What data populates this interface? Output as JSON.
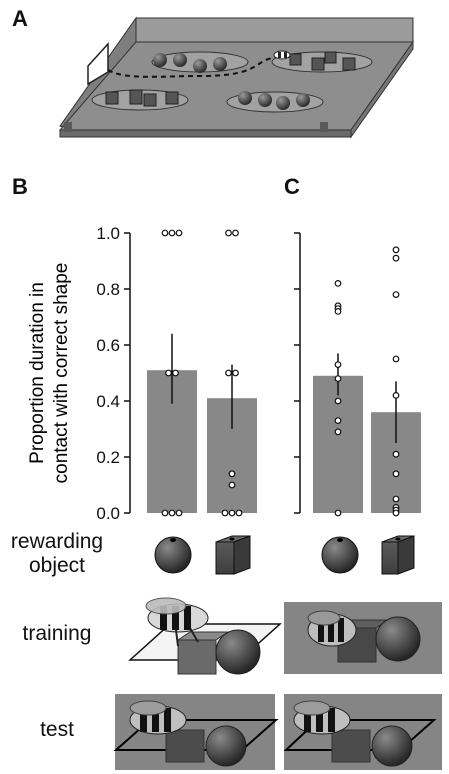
{
  "figure": {
    "panels": {
      "a": "A",
      "b": "B",
      "c": "C"
    },
    "row_labels": {
      "rewarding_object_line1": "rewarding",
      "rewarding_object_line2": "object",
      "training": "training",
      "test": "test"
    }
  },
  "chart_data": [
    {
      "type": "bar",
      "panel": "B",
      "ylabel_line1": "Proportion duration in",
      "ylabel_line2": "contact with correct shape",
      "ylim": [
        0,
        1.0
      ],
      "yticks": [
        "0.0",
        "0.2",
        "0.4",
        "0.6",
        "0.8",
        "1.0"
      ],
      "categories": [
        "sphere",
        "cube"
      ],
      "values": [
        0.51,
        0.41
      ],
      "error_low": [
        0.39,
        0.3
      ],
      "error_high": [
        0.64,
        0.53
      ],
      "points": [
        [
          1.0,
          1.0,
          1.0,
          0.5,
          0.5,
          0.0,
          0.0,
          0.0
        ],
        [
          1.0,
          1.0,
          0.5,
          0.5,
          0.14,
          0.1,
          0.0,
          0.0,
          0.0
        ]
      ]
    },
    {
      "type": "bar",
      "panel": "C",
      "ylim": [
        0,
        1.0
      ],
      "categories": [
        "sphere",
        "cube"
      ],
      "values": [
        0.49,
        0.36
      ],
      "error_low": [
        0.42,
        0.25
      ],
      "error_high": [
        0.57,
        0.47
      ],
      "points": [
        [
          0.82,
          0.74,
          0.73,
          0.72,
          0.53,
          0.48,
          0.4,
          0.33,
          0.29,
          0.0
        ],
        [
          0.94,
          0.91,
          0.78,
          0.55,
          0.42,
          0.21,
          0.14,
          0.05,
          0.02,
          0.01,
          0.0
        ]
      ]
    }
  ]
}
